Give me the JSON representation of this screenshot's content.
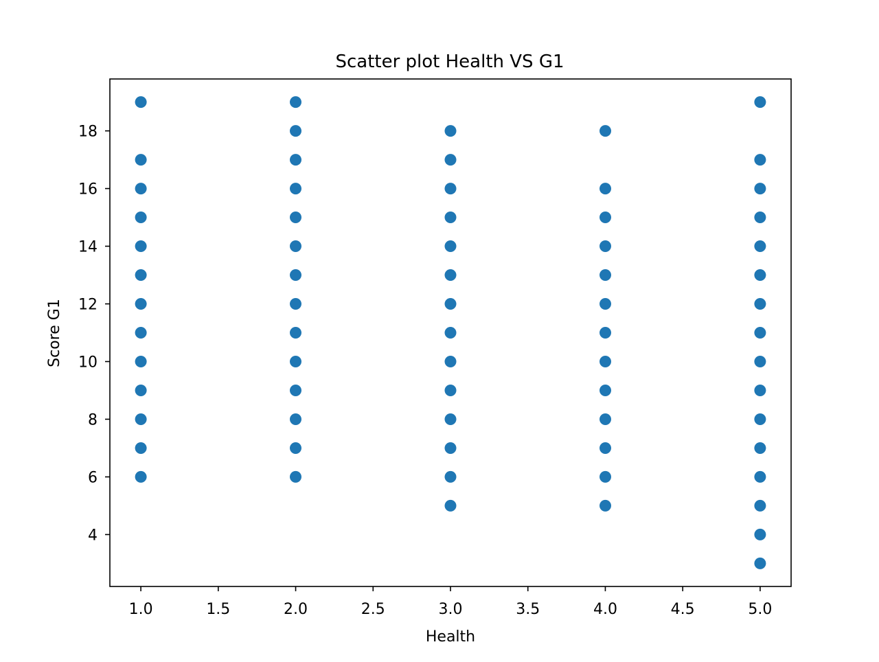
{
  "chart_data": {
    "type": "scatter",
    "title": "Scatter plot Health VS G1",
    "xlabel": "Health",
    "ylabel": "Score G1",
    "xlim": [
      0.8,
      5.2
    ],
    "ylim": [
      2.2,
      19.8
    ],
    "xticks": [
      1.0,
      1.5,
      2.0,
      2.5,
      3.0,
      3.5,
      4.0,
      4.5,
      5.0
    ],
    "xtick_labels": [
      "1.0",
      "1.5",
      "2.0",
      "2.5",
      "3.0",
      "3.5",
      "4.0",
      "4.5",
      "5.0"
    ],
    "yticks": [
      4,
      6,
      8,
      10,
      12,
      14,
      16,
      18
    ],
    "ytick_labels": [
      "4",
      "6",
      "8",
      "10",
      "12",
      "14",
      "16",
      "18"
    ],
    "grid": false,
    "marker_color": "#1f77b4",
    "series": [
      {
        "points": [
          [
            1,
            6
          ],
          [
            1,
            7
          ],
          [
            1,
            8
          ],
          [
            1,
            9
          ],
          [
            1,
            10
          ],
          [
            1,
            11
          ],
          [
            1,
            12
          ],
          [
            1,
            13
          ],
          [
            1,
            14
          ],
          [
            1,
            15
          ],
          [
            1,
            16
          ],
          [
            1,
            17
          ],
          [
            1,
            19
          ],
          [
            2,
            6
          ],
          [
            2,
            7
          ],
          [
            2,
            8
          ],
          [
            2,
            9
          ],
          [
            2,
            10
          ],
          [
            2,
            11
          ],
          [
            2,
            12
          ],
          [
            2,
            13
          ],
          [
            2,
            14
          ],
          [
            2,
            15
          ],
          [
            2,
            16
          ],
          [
            2,
            17
          ],
          [
            2,
            18
          ],
          [
            2,
            19
          ],
          [
            3,
            5
          ],
          [
            3,
            6
          ],
          [
            3,
            7
          ],
          [
            3,
            8
          ],
          [
            3,
            9
          ],
          [
            3,
            10
          ],
          [
            3,
            11
          ],
          [
            3,
            12
          ],
          [
            3,
            13
          ],
          [
            3,
            14
          ],
          [
            3,
            15
          ],
          [
            3,
            16
          ],
          [
            3,
            17
          ],
          [
            3,
            18
          ],
          [
            4,
            5
          ],
          [
            4,
            6
          ],
          [
            4,
            7
          ],
          [
            4,
            8
          ],
          [
            4,
            9
          ],
          [
            4,
            10
          ],
          [
            4,
            11
          ],
          [
            4,
            12
          ],
          [
            4,
            13
          ],
          [
            4,
            14
          ],
          [
            4,
            15
          ],
          [
            4,
            16
          ],
          [
            4,
            18
          ],
          [
            5,
            3
          ],
          [
            5,
            4
          ],
          [
            5,
            5
          ],
          [
            5,
            6
          ],
          [
            5,
            7
          ],
          [
            5,
            8
          ],
          [
            5,
            9
          ],
          [
            5,
            10
          ],
          [
            5,
            11
          ],
          [
            5,
            12
          ],
          [
            5,
            13
          ],
          [
            5,
            14
          ],
          [
            5,
            15
          ],
          [
            5,
            16
          ],
          [
            5,
            17
          ],
          [
            5,
            19
          ]
        ]
      }
    ]
  }
}
